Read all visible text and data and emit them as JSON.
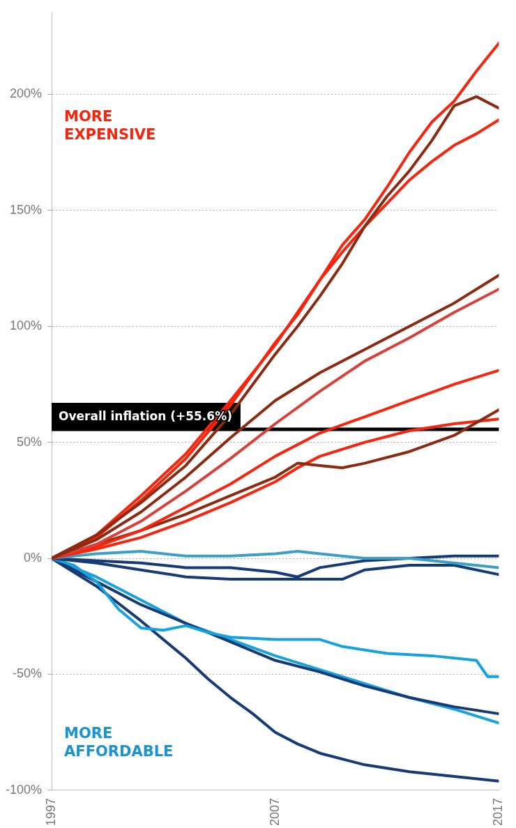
{
  "chart_data": {
    "type": "line",
    "xlim": [
      1997,
      2017
    ],
    "xticks": [
      1997,
      2007,
      2017
    ],
    "ylim": [
      -100,
      235
    ],
    "yticks": [
      {
        "value": -100,
        "label": "-100%"
      },
      {
        "value": -50,
        "label": "-50%"
      },
      {
        "value": 0,
        "label": "0%"
      },
      {
        "value": 50,
        "label": "50%"
      },
      {
        "value": 100,
        "label": "100%"
      },
      {
        "value": 150,
        "label": "150%"
      },
      {
        "value": 200,
        "label": "200%"
      }
    ],
    "grid": "y",
    "legend": false,
    "marker": "none",
    "line_style": "solid",
    "ref_lines": [
      {
        "axis": "y",
        "value": 55.6,
        "label": "Overall inflation (+55.6%)",
        "color": "#000000"
      }
    ],
    "annotations": [
      "MORE EXPENSIVE",
      "MORE AFFORDABLE"
    ],
    "series": [
      {
        "color": "#8b2a10",
        "x": [
          1997,
          1999,
          2001,
          2003,
          2005,
          2007,
          2009,
          2011,
          2013,
          2015,
          2017
        ],
        "values": [
          0,
          8,
          20,
          35,
          52,
          68,
          80,
          90,
          100,
          110,
          122
        ]
      },
      {
        "color": "#d9403a",
        "x": [
          1997,
          1999,
          2001,
          2003,
          2005,
          2007,
          2009,
          2011,
          2013,
          2015,
          2017
        ],
        "values": [
          0,
          6,
          16,
          29,
          43,
          58,
          72,
          85,
          95,
          106,
          116
        ]
      },
      {
        "color": "#f7250d",
        "x": [
          1997,
          1999,
          2001,
          2003,
          2005,
          2007,
          2009,
          2011,
          2013,
          2015,
          2017
        ],
        "values": [
          0,
          5,
          12,
          22,
          32,
          44,
          54,
          61,
          68,
          75,
          81
        ]
      },
      {
        "color": "#8b2a10",
        "x": [
          1997,
          1999,
          2001,
          2003,
          2005,
          2007,
          2008,
          2009,
          2010,
          2011,
          2013,
          2015,
          2017
        ],
        "values": [
          0,
          6,
          12,
          19,
          27,
          35,
          41,
          40,
          39,
          41,
          46,
          53,
          64
        ]
      },
      {
        "color": "#f7250d",
        "x": [
          1997,
          1999,
          2001,
          2003,
          2005,
          2007,
          2008,
          2009,
          2011,
          2013,
          2015,
          2017
        ],
        "values": [
          0,
          4,
          9,
          16,
          24,
          33,
          39,
          44,
          50,
          55,
          58,
          60
        ]
      },
      {
        "color": "#8b2a10",
        "x": [
          1997,
          1999,
          2001,
          2003,
          2005,
          2007,
          2008,
          2009,
          2010,
          2011,
          2012,
          2013,
          2014,
          2015,
          2016,
          2017
        ],
        "values": [
          0,
          10,
          24,
          40,
          62,
          88,
          100,
          113,
          127,
          143,
          156,
          167,
          180,
          195,
          199,
          194
        ]
      },
      {
        "color": "#f7250d",
        "x": [
          1997,
          1999,
          2001,
          2003,
          2005,
          2007,
          2008,
          2009,
          2010,
          2011,
          2012,
          2013,
          2014,
          2015,
          2016,
          2017
        ],
        "values": [
          0,
          9,
          25,
          43,
          66,
          93,
          105,
          120,
          132,
          143,
          153,
          163,
          171,
          178,
          183,
          189
        ]
      },
      {
        "color": "#f7250d",
        "x": [
          1997,
          1999,
          2001,
          2003,
          2005,
          2007,
          2008,
          2009,
          2010,
          2011,
          2012,
          2013,
          2014,
          2015,
          2016,
          2017
        ],
        "values": [
          0,
          10,
          27,
          45,
          68,
          92,
          106,
          120,
          135,
          146,
          160,
          175,
          188,
          197,
          210,
          222
        ]
      },
      {
        "color": "#3c9fc4",
        "x": [
          1997,
          1999,
          2001,
          2003,
          2005,
          2007,
          2008,
          2009,
          2011,
          2013,
          2015,
          2017
        ],
        "values": [
          0,
          2,
          3,
          1,
          1,
          2,
          3,
          2,
          0,
          0,
          -2,
          -4
        ]
      },
      {
        "color": "#153a75",
        "x": [
          1997,
          1999,
          2001,
          2003,
          2005,
          2007,
          2008,
          2009,
          2011,
          2013,
          2015,
          2017
        ],
        "values": [
          0,
          -1,
          -2,
          -4,
          -4,
          -6,
          -8,
          -4,
          -1,
          0,
          1,
          1
        ]
      },
      {
        "color": "#153a75",
        "x": [
          1997,
          1999,
          2001,
          2003,
          2005,
          2007,
          2008,
          2009,
          2010,
          2011,
          2013,
          2015,
          2017
        ],
        "values": [
          0,
          -2,
          -5,
          -8,
          -9,
          -9,
          -9,
          -9,
          -9,
          -5,
          -3,
          -3,
          -7
        ]
      },
      {
        "color": "#16a2de",
        "x": [
          1997,
          1998,
          1999,
          2000,
          2001,
          2002,
          2003,
          2004,
          2005,
          2007,
          2009,
          2010,
          2012,
          2014,
          2016,
          2016.5,
          2017
        ],
        "values": [
          0,
          -3,
          -10,
          -22,
          -30,
          -31,
          -29,
          -32,
          -34,
          -35,
          -35,
          -38,
          -41,
          -42,
          -44,
          -51,
          -51
        ]
      },
      {
        "color": "#153a75",
        "x": [
          1997,
          1999,
          2001,
          2003,
          2004,
          2005,
          2007,
          2009,
          2011,
          2013,
          2015,
          2017
        ],
        "values": [
          0,
          -10,
          -20,
          -28,
          -32,
          -36,
          -44,
          -49,
          -55,
          -60,
          -64,
          -67
        ]
      },
      {
        "color": "#16a2de",
        "x": [
          1997,
          1999,
          2001,
          2003,
          2005,
          2007,
          2009,
          2011,
          2013,
          2015,
          2017
        ],
        "values": [
          0,
          -8,
          -18,
          -28,
          -35,
          -42,
          -48,
          -54,
          -60,
          -65,
          -71
        ]
      },
      {
        "color": "#153a75",
        "x": [
          1997,
          1999,
          2001,
          2003,
          2004,
          2005,
          2006,
          2007,
          2008,
          2009,
          2011,
          2013,
          2015,
          2017
        ],
        "values": [
          0,
          -12,
          -27,
          -43,
          -52,
          -60,
          -67,
          -75,
          -80,
          -84,
          -89,
          -92,
          -94,
          -96
        ]
      }
    ]
  }
}
